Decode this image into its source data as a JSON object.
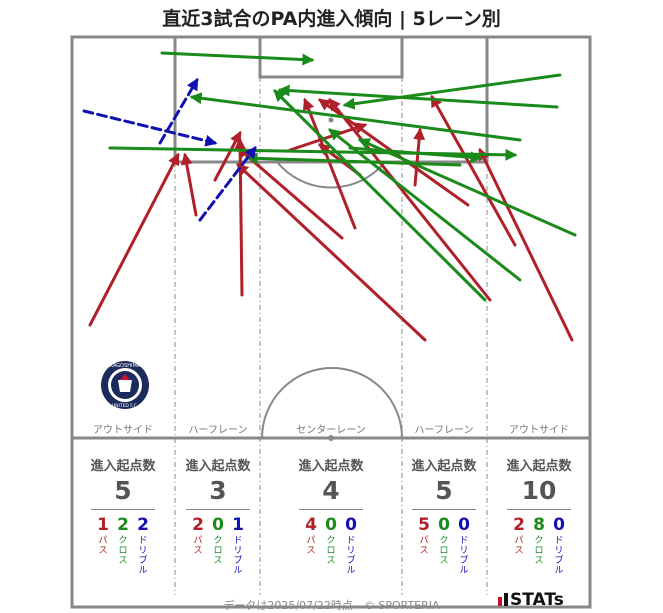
{
  "title": "直近3試合のPA内進入傾向 | 5レーン別",
  "colors": {
    "pass": "#b0202a",
    "cross": "#1a8a1a",
    "dribble": "#1010b0",
    "pitch_line": "#888888"
  },
  "crest": {
    "text_top": "KAGOSHIMA",
    "text_bottom": "UNITED F.C.",
    "icon": "club-crest"
  },
  "lanes": [
    {
      "name": "アウトサイド",
      "total": "5",
      "pass": "1",
      "cross": "2",
      "dribble": "2"
    },
    {
      "name": "ハーフレーン",
      "total": "3",
      "pass": "2",
      "cross": "0",
      "dribble": "1"
    },
    {
      "name": "センターレーン",
      "total": "4",
      "pass": "4",
      "cross": "0",
      "dribble": "0"
    },
    {
      "name": "ハーフレーン",
      "total": "5",
      "pass": "5",
      "cross": "0",
      "dribble": "0"
    },
    {
      "name": "アウトサイド",
      "total": "10",
      "pass": "2",
      "cross": "8",
      "dribble": "0"
    }
  ],
  "stat_header": "進入起点数",
  "type_labels": {
    "pass": "パス",
    "cross": "クロス",
    "dribble": "ドリブル"
  },
  "footer": "データは2025/07/22時点　© SPORTERIA",
  "brand": "STATs",
  "arrows": [
    {
      "type": "pass",
      "from": [
        90,
        325
      ],
      "to": [
        178,
        155
      ]
    },
    {
      "type": "pass",
      "from": [
        196,
        215
      ],
      "to": [
        185,
        155
      ]
    },
    {
      "type": "pass",
      "from": [
        215,
        180
      ],
      "to": [
        240,
        133
      ]
    },
    {
      "type": "pass",
      "from": [
        242,
        295
      ],
      "to": [
        240,
        140
      ]
    },
    {
      "type": "pass",
      "from": [
        342,
        238
      ],
      "to": [
        238,
        148
      ]
    },
    {
      "type": "pass",
      "from": [
        425,
        340
      ],
      "to": [
        238,
        165
      ]
    },
    {
      "type": "pass",
      "from": [
        355,
        228
      ],
      "to": [
        305,
        100
      ]
    },
    {
      "type": "pass",
      "from": [
        290,
        150
      ],
      "to": [
        365,
        125
      ]
    },
    {
      "type": "pass",
      "from": [
        360,
        175
      ],
      "to": [
        320,
        145
      ]
    },
    {
      "type": "pass",
      "from": [
        415,
        185
      ],
      "to": [
        420,
        130
      ]
    },
    {
      "type": "pass",
      "from": [
        468,
        205
      ],
      "to": [
        320,
        100
      ]
    },
    {
      "type": "pass",
      "from": [
        490,
        300
      ],
      "to": [
        330,
        100
      ]
    },
    {
      "type": "pass",
      "from": [
        515,
        245
      ],
      "to": [
        432,
        97
      ]
    },
    {
      "type": "pass",
      "from": [
        572,
        340
      ],
      "to": [
        480,
        150
      ]
    },
    {
      "type": "cross",
      "from": [
        162,
        53
      ],
      "to": [
        312,
        60
      ]
    },
    {
      "type": "cross",
      "from": [
        110,
        148
      ],
      "to": [
        515,
        155
      ]
    },
    {
      "type": "cross",
      "from": [
        485,
        300
      ],
      "to": [
        275,
        91
      ]
    },
    {
      "type": "cross",
      "from": [
        520,
        280
      ],
      "to": [
        330,
        130
      ]
    },
    {
      "type": "cross",
      "from": [
        575,
        235
      ],
      "to": [
        360,
        140
      ]
    },
    {
      "type": "cross",
      "from": [
        560,
        75
      ],
      "to": [
        345,
        105
      ]
    },
    {
      "type": "cross",
      "from": [
        557,
        107
      ],
      "to": [
        280,
        90
      ]
    },
    {
      "type": "cross",
      "from": [
        520,
        140
      ],
      "to": [
        192,
        97
      ]
    },
    {
      "type": "cross",
      "from": [
        460,
        165
      ],
      "to": [
        248,
        158
      ]
    },
    {
      "type": "cross",
      "from": [
        350,
        148
      ],
      "to": [
        480,
        158
      ]
    },
    {
      "type": "dribble",
      "from": [
        84,
        111
      ],
      "to": [
        215,
        143
      ]
    },
    {
      "type": "dribble",
      "from": [
        160,
        143
      ],
      "to": [
        197,
        80
      ]
    },
    {
      "type": "dribble",
      "from": [
        200,
        220
      ],
      "to": [
        255,
        148
      ]
    }
  ]
}
